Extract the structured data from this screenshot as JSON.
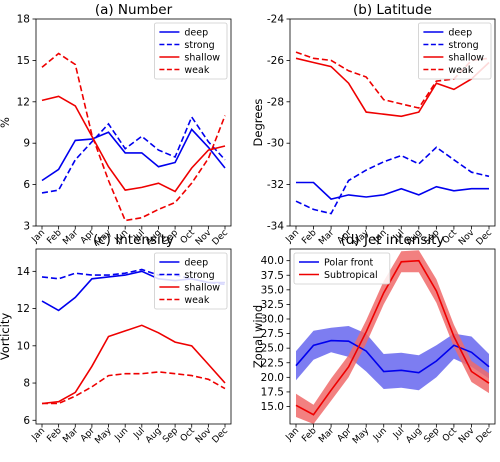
{
  "chart_data": [
    {
      "type": "line",
      "title": "(a) Number",
      "ylabel": "%",
      "xlabel": "",
      "categories": [
        "Jan",
        "Feb",
        "Mar",
        "Apr",
        "May",
        "Jun",
        "Jul",
        "Aug",
        "Sep",
        "Oct",
        "Nov",
        "Dec"
      ],
      "ylim": [
        3,
        18
      ],
      "yticks": [
        3,
        6,
        9,
        12,
        15,
        18
      ],
      "legend_position": "top-right",
      "series": [
        {
          "name": "deep",
          "color": "#0000ee",
          "dash": "solid",
          "values": [
            6.3,
            7.1,
            9.2,
            9.3,
            9.8,
            8.3,
            8.3,
            7.3,
            7.6,
            10.0,
            8.7,
            7.2
          ]
        },
        {
          "name": "strong",
          "color": "#0000ee",
          "dash": "dashed",
          "values": [
            5.4,
            5.6,
            7.8,
            9.1,
            10.4,
            8.6,
            9.5,
            8.5,
            8.0,
            10.9,
            9.1,
            7.8
          ]
        },
        {
          "name": "shallow",
          "color": "#ee0000",
          "dash": "solid",
          "values": [
            12.1,
            12.4,
            11.7,
            9.5,
            7.3,
            5.6,
            5.8,
            6.1,
            5.5,
            7.2,
            8.5,
            8.8
          ]
        },
        {
          "name": "weak",
          "color": "#ee0000",
          "dash": "dashed",
          "values": [
            14.5,
            15.5,
            14.7,
            9.6,
            6.3,
            3.4,
            3.6,
            4.2,
            4.7,
            6.1,
            7.9,
            11.0
          ]
        }
      ]
    },
    {
      "type": "line",
      "title": "(b) Latitude",
      "ylabel": "Degrees",
      "xlabel": "",
      "categories": [
        "Jan",
        "Feb",
        "Mar",
        "Apr",
        "May",
        "Jun",
        "Jul",
        "Aug",
        "Sep",
        "Oct",
        "Nov",
        "Dec"
      ],
      "ylim": [
        -34,
        -24
      ],
      "yticks": [
        -34,
        -32,
        -30,
        -28,
        -26,
        -24
      ],
      "legend_position": "top-right",
      "series": [
        {
          "name": "deep",
          "color": "#0000ee",
          "dash": "solid",
          "values": [
            -31.9,
            -31.9,
            -32.7,
            -32.5,
            -32.6,
            -32.5,
            -32.2,
            -32.5,
            -32.1,
            -32.3,
            -32.2,
            -32.2
          ]
        },
        {
          "name": "strong",
          "color": "#0000ee",
          "dash": "dashed",
          "values": [
            -32.8,
            -33.2,
            -33.4,
            -31.8,
            -31.3,
            -30.9,
            -30.6,
            -31.0,
            -30.2,
            -30.8,
            -31.4,
            -31.6
          ]
        },
        {
          "name": "shallow",
          "color": "#ee0000",
          "dash": "solid",
          "values": [
            -25.9,
            -26.1,
            -26.3,
            -27.1,
            -28.5,
            -28.6,
            -28.7,
            -28.5,
            -27.1,
            -27.4,
            -26.9,
            -26.1
          ]
        },
        {
          "name": "weak",
          "color": "#ee0000",
          "dash": "dashed",
          "values": [
            -25.6,
            -25.9,
            -26.0,
            -26.5,
            -26.8,
            -27.9,
            -28.1,
            -28.3,
            -27.0,
            -26.9,
            -26.0,
            -25.9
          ]
        }
      ]
    },
    {
      "type": "line",
      "title": "(c) Intensity",
      "ylabel": "Vorticity",
      "xlabel": "",
      "categories": [
        "Jan",
        "Feb",
        "Mar",
        "Apr",
        "May",
        "Jun",
        "Jul",
        "Aug",
        "Sep",
        "Oct",
        "Nov",
        "Dec"
      ],
      "ylim": [
        5.8,
        15.2
      ],
      "yticks": [
        6,
        8,
        10,
        12,
        14
      ],
      "legend_position": "top-right",
      "series": [
        {
          "name": "deep",
          "color": "#0000ee",
          "dash": "solid",
          "values": [
            12.4,
            11.9,
            12.6,
            13.6,
            13.7,
            13.8,
            14.0,
            13.6,
            13.5,
            13.6,
            13.4,
            13.4
          ]
        },
        {
          "name": "strong",
          "color": "#0000ee",
          "dash": "dashed",
          "values": [
            13.7,
            13.6,
            13.9,
            13.8,
            13.8,
            13.9,
            14.1,
            13.8,
            13.8,
            13.6,
            13.4,
            13.3
          ]
        },
        {
          "name": "shallow",
          "color": "#ee0000",
          "dash": "solid",
          "values": [
            6.9,
            7.0,
            7.5,
            8.9,
            10.5,
            10.8,
            11.1,
            10.7,
            10.2,
            10.0,
            9.0,
            8.0
          ]
        },
        {
          "name": "weak",
          "color": "#ee0000",
          "dash": "dashed",
          "values": [
            6.9,
            6.9,
            7.3,
            7.8,
            8.4,
            8.5,
            8.5,
            8.6,
            8.5,
            8.4,
            8.2,
            7.7
          ]
        }
      ]
    },
    {
      "type": "area",
      "title": "(d) Jet intensity",
      "ylabel": "Zonal wind",
      "xlabel": "",
      "categories": [
        "Jan",
        "Feb",
        "Mar",
        "Apr",
        "May",
        "Jun",
        "Jul",
        "Aug",
        "Sep",
        "Oct",
        "Nov",
        "Dec"
      ],
      "ylim": [
        12,
        42
      ],
      "yticks": [
        15.0,
        17.5,
        20.0,
        22.5,
        25.0,
        27.5,
        30.0,
        32.5,
        35.0,
        37.5,
        40.0
      ],
      "ytick_labels": [
        "15.0",
        "17.5",
        "20.0",
        "22.5",
        "25.0",
        "27.5",
        "30.0",
        "32.5",
        "35.0",
        "37.5",
        "40.0"
      ],
      "legend_position": "top-left",
      "series": [
        {
          "name": "Polar front",
          "color": "#0000ee",
          "fill": "#6666ee",
          "dash": "solid",
          "values": [
            22.0,
            25.5,
            26.3,
            26.2,
            24.5,
            21.0,
            21.2,
            20.8,
            22.8,
            25.5,
            24.3,
            21.8
          ],
          "lower": [
            19.5,
            23.0,
            24.3,
            23.5,
            21.0,
            18.0,
            18.2,
            17.8,
            20.0,
            23.2,
            21.8,
            19.8
          ],
          "upper": [
            24.5,
            28.0,
            28.5,
            28.8,
            27.5,
            24.0,
            24.2,
            23.8,
            25.5,
            27.5,
            27.0,
            24.0
          ]
        },
        {
          "name": "Subtropical",
          "color": "#ee0000",
          "fill": "#f06a6a",
          "dash": "solid",
          "values": [
            15.2,
            13.6,
            17.8,
            21.8,
            27.8,
            34.5,
            39.8,
            40.0,
            34.8,
            27.0,
            21.0,
            19.0
          ],
          "lower": [
            13.2,
            12.0,
            16.0,
            20.0,
            25.8,
            32.5,
            38.0,
            38.0,
            32.8,
            25.2,
            19.2,
            17.3
          ],
          "upper": [
            17.2,
            15.3,
            19.8,
            23.8,
            29.8,
            36.5,
            41.6,
            41.8,
            36.8,
            29.0,
            22.8,
            20.7
          ]
        }
      ]
    }
  ]
}
